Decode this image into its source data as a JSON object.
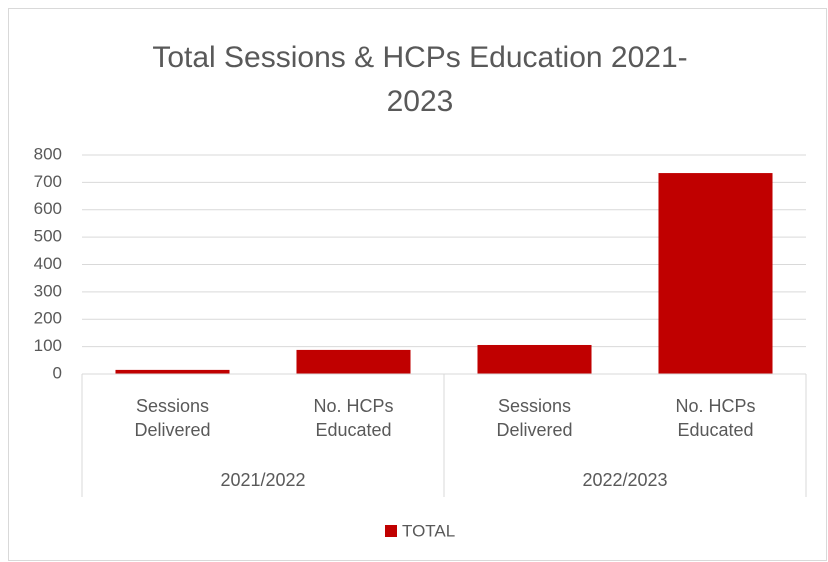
{
  "chart_data": {
    "type": "bar",
    "title": "Total Sessions & HCPs Education 2021-2023",
    "groups": [
      {
        "name": "2021/2022",
        "categories": [
          "Sessions Delivered",
          "No. HCPs Educated"
        ]
      },
      {
        "name": "2022/2023",
        "categories": [
          "Sessions Delivered",
          "No. HCPs Educated"
        ]
      }
    ],
    "series": [
      {
        "name": "TOTAL",
        "color": "#c00000",
        "values": [
          15,
          88,
          106,
          734
        ]
      }
    ],
    "ylim": [
      0,
      800
    ],
    "yticks": [
      0,
      100,
      200,
      300,
      400,
      500,
      600,
      700,
      800
    ],
    "grid": true,
    "legend": "bottom"
  }
}
